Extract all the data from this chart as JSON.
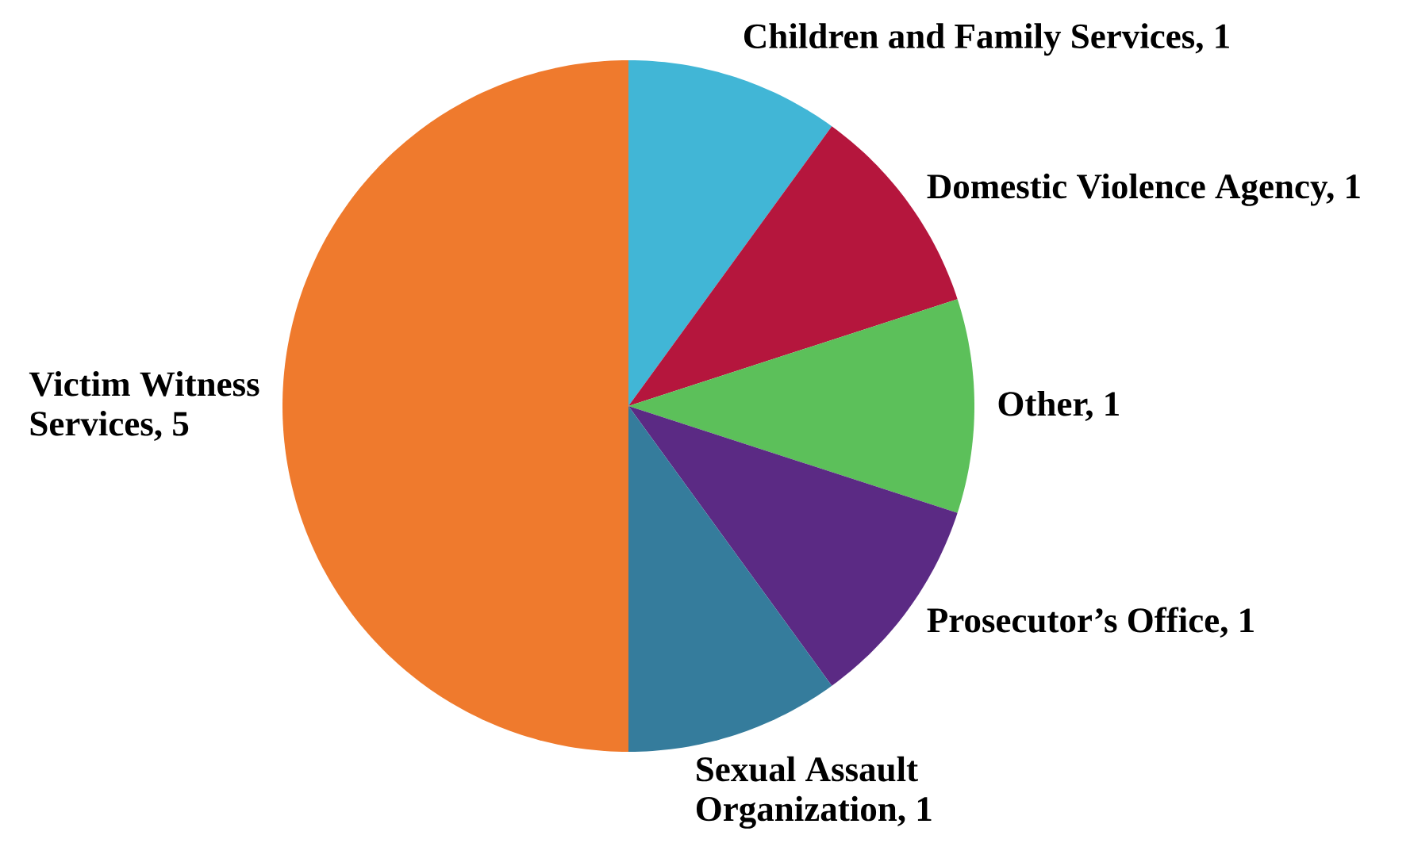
{
  "chart_data": {
    "type": "pie",
    "categories": [
      "Children and Family Services, 1",
      "Domestic Violence Agency, 1",
      "Other, 1",
      "Prosecutor’s Office, 1",
      "Sexual Assault Organization, 1",
      "Victim Witness Services, 5"
    ],
    "values": [
      1,
      1,
      1,
      1,
      1,
      5
    ],
    "colors": [
      "#41b6d6",
      "#b5163d",
      "#5cc05a",
      "#5b2a84",
      "#357c9c",
      "#ef7a2d"
    ]
  }
}
